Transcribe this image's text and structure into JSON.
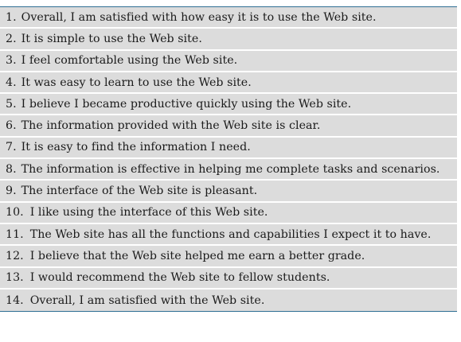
{
  "items": [
    {
      "number": "1.",
      "text": "Overall, I am satisfied with how easy it is to use the Web site."
    },
    {
      "number": "2.",
      "text": "It is simple to use the Web site."
    },
    {
      "number": "3.",
      "text": "I feel comfortable using the Web site."
    },
    {
      "number": "4.",
      "text": "It was easy to learn to use the Web site."
    },
    {
      "number": "5.",
      "text": "I believe I became productive quickly using the Web site."
    },
    {
      "number": "6.",
      "text": "The information provided with the Web site is clear."
    },
    {
      "number": "7.",
      "text": "It is easy to find the information I need."
    },
    {
      "number": "8.",
      "text": "The information is effective in helping me complete tasks and scenarios."
    },
    {
      "number": "9.",
      "text": "The interface of the Web site is pleasant."
    },
    {
      "number": "10.",
      "text": "I like using the interface of this Web site."
    },
    {
      "number": "11.",
      "text": "The Web site has all the functions and capabilities I expect it to have."
    },
    {
      "number": "12.",
      "text": "I believe that the Web site helped me earn a better grade."
    },
    {
      "number": "13.",
      "text": "I would recommend the Web site to fellow students."
    },
    {
      "number": "14.",
      "text": "Overall, I am satisfied with the Web site."
    }
  ],
  "colors": {
    "row_background": "#dcdcdc",
    "rule": "#2f6f94",
    "text": "#1a1a1a"
  }
}
